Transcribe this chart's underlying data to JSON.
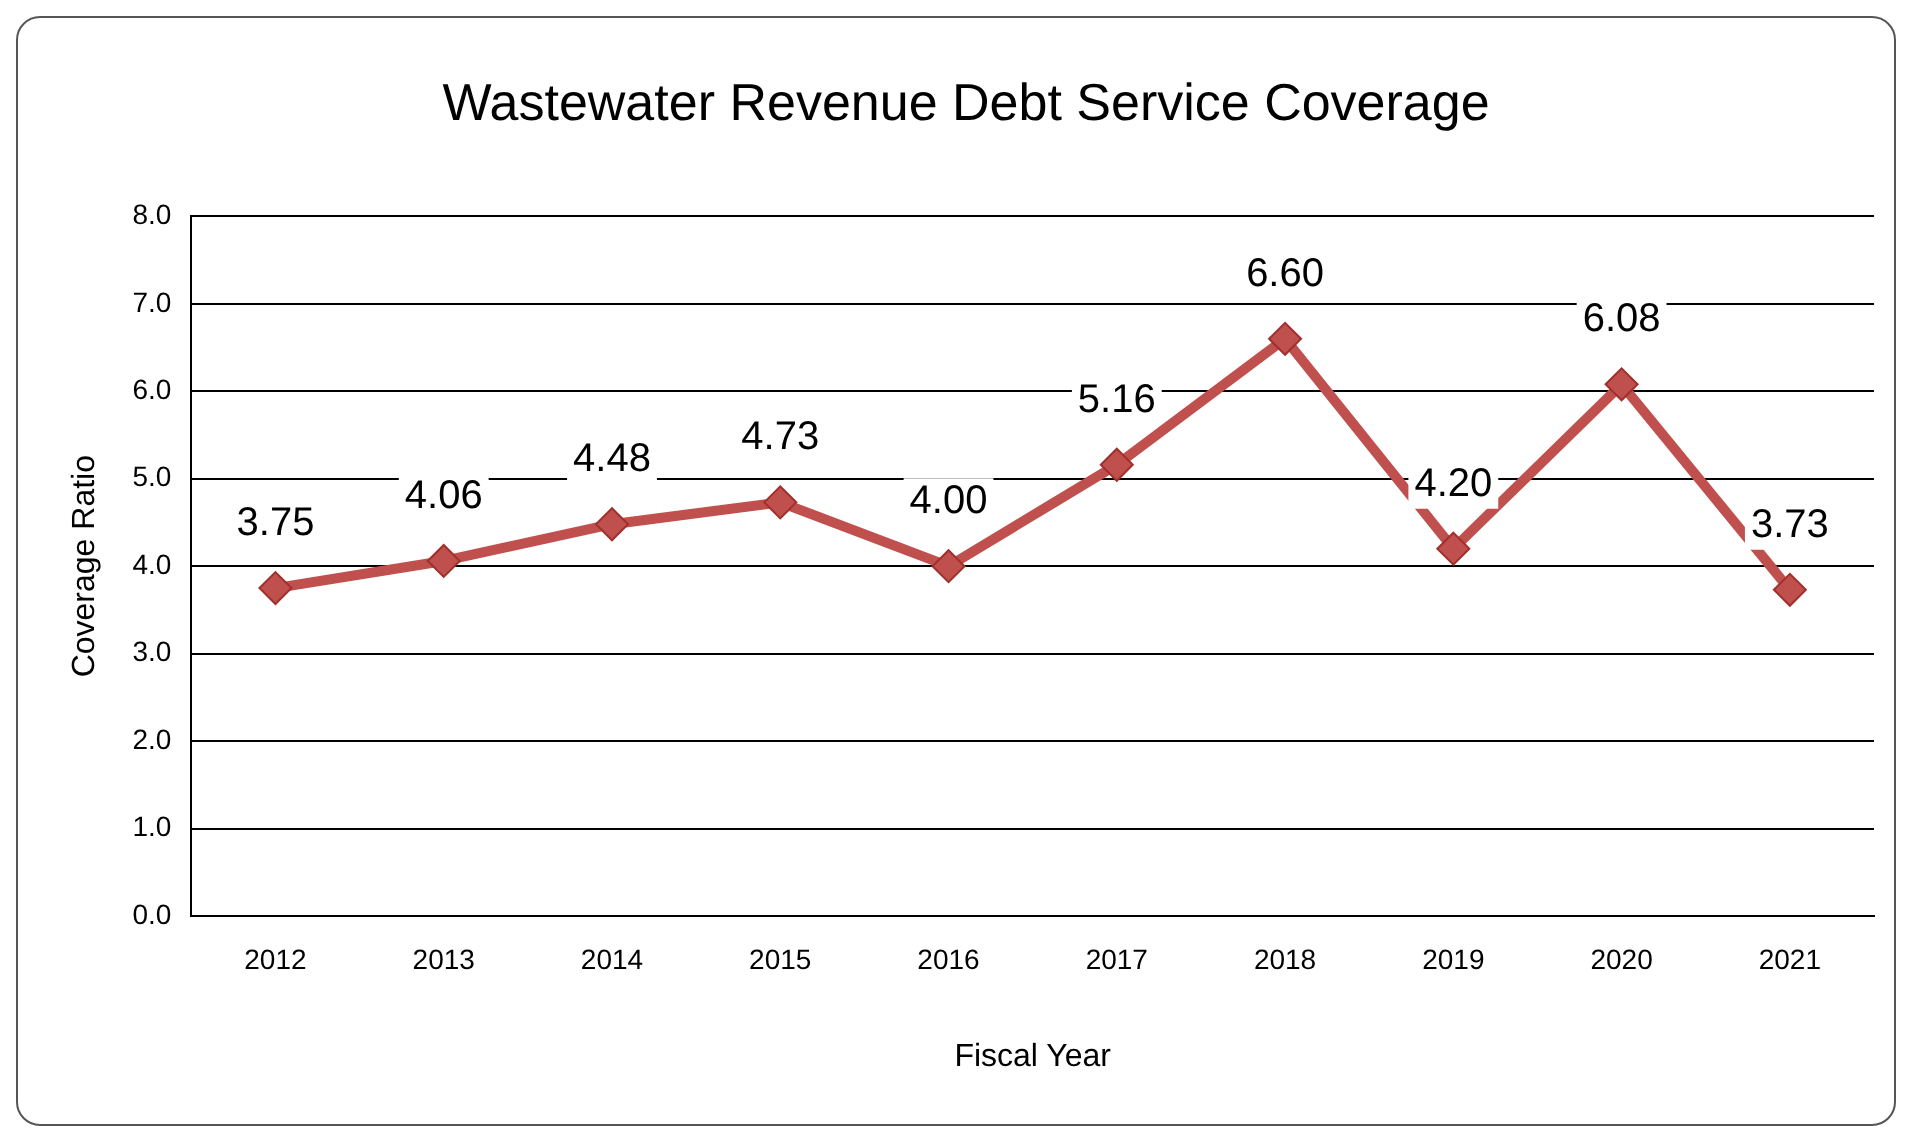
{
  "chart_data": {
    "type": "line",
    "title": "Wastewater Revenue Debt Service Coverage",
    "xlabel": "Fiscal Year",
    "ylabel": "Coverage Ratio",
    "categories": [
      "2012",
      "2013",
      "2014",
      "2015",
      "2016",
      "2017",
      "2018",
      "2019",
      "2020",
      "2021"
    ],
    "series": [
      {
        "color": "#c0504d",
        "values": [
          3.75,
          4.06,
          4.48,
          4.73,
          4.0,
          5.16,
          6.6,
          4.2,
          6.08,
          3.73
        ],
        "value_labels": [
          "3.75",
          "4.06",
          "4.48",
          "4.73",
          "4.00",
          "5.16",
          "6.60",
          "4.20",
          "6.08",
          "3.73"
        ]
      }
    ],
    "ylim": [
      0,
      8
    ],
    "yticks": [
      {
        "value": 0,
        "label": "0.0"
      },
      {
        "value": 1,
        "label": "1.0"
      },
      {
        "value": 2,
        "label": "2.0"
      },
      {
        "value": 3,
        "label": "3.0"
      },
      {
        "value": 4,
        "label": "4.0"
      },
      {
        "value": 5,
        "label": "5.0"
      },
      {
        "value": 6,
        "label": "6.0"
      },
      {
        "value": 7,
        "label": "7.0"
      },
      {
        "value": 8,
        "label": "8.0"
      }
    ],
    "grid": "y",
    "marker": "diamond",
    "line_style": "solid",
    "legend": false
  }
}
